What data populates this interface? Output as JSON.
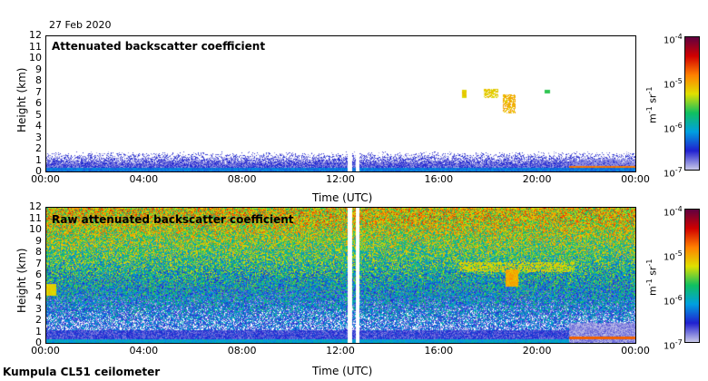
{
  "date_label": "27 Feb 2020",
  "instrument_label": "Kumpula CL51 ceilometer",
  "colors": {
    "colormap": [
      "#c8c8e8",
      "#2020d0",
      "#00a0e0",
      "#10c060",
      "#e0e000",
      "#ff8000",
      "#d00000",
      "#600040"
    ]
  },
  "colorbar": {
    "top_label": "10",
    "top_exp": "-4",
    "label_1e5": "10",
    "exp_1e5": "-5",
    "label_1e6": "10",
    "exp_1e6": "-6",
    "bottom_label": "10",
    "bottom_exp": "-7",
    "unit_m": "m",
    "unit_m_exp": "-1",
    "unit_sr": " sr",
    "unit_sr_exp": "-1"
  },
  "chart_data": [
    {
      "type": "heatmap",
      "title": "Attenuated backscatter coefficient",
      "xlabel": "Time (UTC)",
      "ylabel": "Height (km)",
      "x_ticks": [
        "00:00",
        "04:00",
        "08:00",
        "12:00",
        "16:00",
        "20:00",
        "00:00"
      ],
      "y_ticks": [
        "0",
        "1",
        "2",
        "3",
        "4",
        "5",
        "6",
        "7",
        "8",
        "9",
        "10",
        "11",
        "12"
      ],
      "xlim_hours": [
        0,
        24
      ],
      "ylim_km": [
        0,
        12
      ],
      "color_scale": "log",
      "clim": [
        1e-07,
        0.0001
      ],
      "data_gaps_hours": [
        [
          12.25,
          12.45
        ],
        [
          12.6,
          12.75
        ]
      ]
    },
    {
      "type": "heatmap",
      "title": "Raw attenuated backscatter coefficient",
      "xlabel": "Time (UTC)",
      "ylabel": "Height (km)",
      "x_ticks": [
        "00:00",
        "04:00",
        "08:00",
        "12:00",
        "16:00",
        "20:00",
        "00:00"
      ],
      "y_ticks": [
        "0",
        "1",
        "2",
        "3",
        "4",
        "5",
        "6",
        "7",
        "8",
        "9",
        "10",
        "11",
        "12"
      ],
      "xlim_hours": [
        0,
        24
      ],
      "ylim_km": [
        0,
        12
      ],
      "color_scale": "log",
      "clim": [
        1e-07,
        0.0001
      ],
      "data_gaps_hours": [
        [
          12.25,
          12.45
        ],
        [
          12.6,
          12.75
        ]
      ]
    }
  ]
}
